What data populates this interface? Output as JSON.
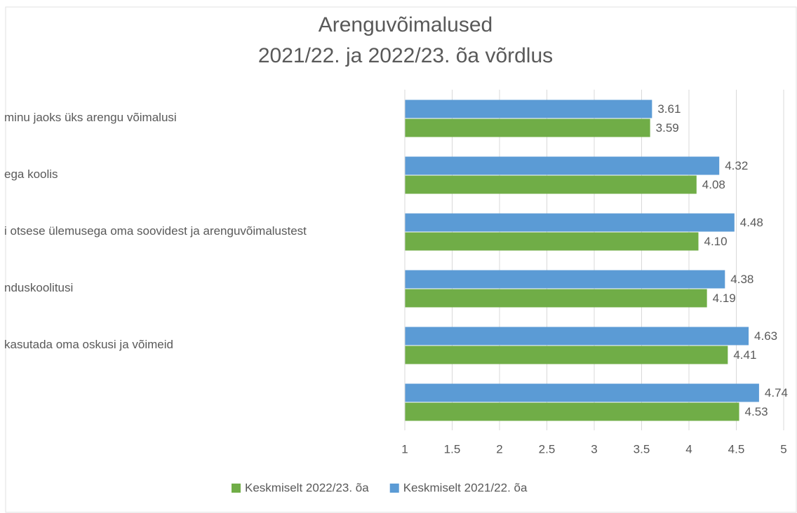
{
  "chart_data": {
    "type": "barh",
    "title": [
      "Arenguvõimalused",
      "2021/22. ja 2022/23. õa võrdlus"
    ],
    "categories": [
      "minu jaoks üks arengu võimalusi",
      "ega koolis",
      "i otsese ülemusega oma soovidest ja arenguvõimalustest",
      "nduskoolitusi",
      "kasutada oma oskusi ja võimeid",
      null
    ],
    "series": [
      {
        "name": "Keskmiselt 2022/23. õa",
        "color": "#70ad47",
        "values": [
          3.59,
          4.08,
          4.1,
          4.19,
          4.41,
          4.53
        ],
        "value_labels": [
          "3.59",
          "4.08",
          "4.10",
          "4.19",
          "4.41",
          "4.53"
        ]
      },
      {
        "name": "Keskmiselt 2021/22. õa",
        "color": "#5b9bd5",
        "values": [
          3.61,
          4.32,
          4.48,
          4.38,
          4.63,
          4.74
        ],
        "value_labels": [
          "3.61",
          "4.32",
          "4.48",
          "4.38",
          "4.63",
          "4.74"
        ]
      }
    ],
    "xlim": [
      1,
      5
    ],
    "xticks": [
      1,
      1.5,
      2,
      2.5,
      3,
      3.5,
      4,
      4.5,
      5
    ],
    "grid": true,
    "legend": "bottom"
  }
}
